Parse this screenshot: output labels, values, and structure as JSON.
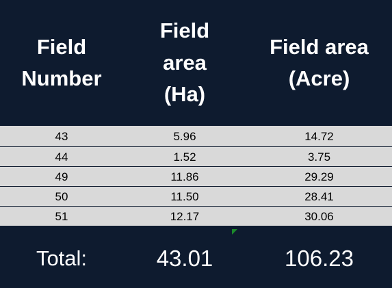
{
  "table": {
    "headers": [
      "Field\nNumber",
      "Field\narea\n(Ha)",
      "Field area\n(Acre)"
    ],
    "rows": [
      [
        "43",
        "5.96",
        "14.72"
      ],
      [
        "44",
        "1.52",
        "3.75"
      ],
      [
        "49",
        "11.86",
        "29.29"
      ],
      [
        "50",
        "11.50",
        "28.41"
      ],
      [
        "51",
        "12.17",
        "30.06"
      ]
    ],
    "footer": {
      "label": "Total:",
      "total_ha": "43.01",
      "total_acre": "106.23"
    }
  },
  "colors": {
    "background": "#0e1b2f",
    "row_fill": "#d9d9d9",
    "cell_marker": "#1b8a2b"
  }
}
